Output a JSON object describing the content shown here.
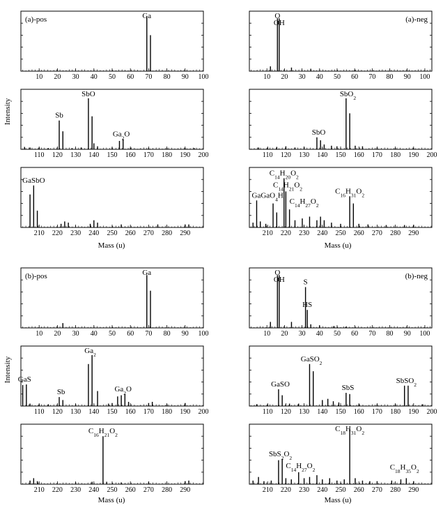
{
  "figure": {
    "intensity_label": "Intensity",
    "mass_label": "Mass (u)"
  },
  "chart_data": [
    {
      "id": "a-pos-1",
      "type": "bar",
      "panel_label": "(a)-pos",
      "xlim": [
        0,
        100
      ],
      "xticks": [
        10,
        20,
        30,
        40,
        50,
        60,
        70,
        80,
        90,
        100
      ],
      "ylim": [
        0,
        1
      ],
      "peaks": [
        [
          69,
          0.9
        ],
        [
          71,
          0.6
        ]
      ],
      "labels": [
        {
          "text": "Ga",
          "x": 69,
          "y": 0.9
        }
      ]
    },
    {
      "id": "a-neg-1",
      "type": "bar",
      "panel_label": "(a)-neg",
      "xlim": [
        0,
        104
      ],
      "xticks": [
        10,
        20,
        30,
        40,
        50,
        60,
        70,
        80,
        90,
        100
      ],
      "ylim": [
        0,
        1
      ],
      "peaks": [
        [
          12,
          0.08
        ],
        [
          16,
          0.88
        ],
        [
          17,
          0.88
        ],
        [
          24,
          0.06
        ],
        [
          35,
          0.04
        ],
        [
          60,
          0.02
        ]
      ],
      "labels": [
        {
          "text": "O",
          "x": 16,
          "y": 0.88
        },
        {
          "text": "OH",
          "x": 17,
          "y": 0.72
        }
      ]
    },
    {
      "id": "a-pos-2",
      "type": "bar",
      "xlim": [
        100,
        200
      ],
      "xticks": [
        110,
        120,
        130,
        140,
        150,
        160,
        170,
        180,
        190,
        200
      ],
      "ylim": [
        0,
        1
      ],
      "peaks": [
        [
          102,
          0.04
        ],
        [
          105,
          0.03
        ],
        [
          110,
          0.03
        ],
        [
          115,
          0.02
        ],
        [
          121,
          0.48
        ],
        [
          123,
          0.3
        ],
        [
          128,
          0.02
        ],
        [
          133,
          0.03
        ],
        [
          137,
          0.85
        ],
        [
          139,
          0.55
        ],
        [
          140,
          0.1
        ],
        [
          142,
          0.05
        ],
        [
          150,
          0.03
        ],
        [
          154,
          0.14
        ],
        [
          156,
          0.17
        ],
        [
          160,
          0.02
        ],
        [
          170,
          0.02
        ],
        [
          180,
          0.02
        ],
        [
          190,
          0.02
        ],
        [
          195,
          0.02
        ]
      ],
      "labels": [
        {
          "text": "Sb",
          "x": 121,
          "y": 0.48
        },
        {
          "text": "SbO",
          "x": 137,
          "y": 0.85
        },
        {
          "text": "Ga",
          "sub": "2",
          "tail": "O",
          "x": 155,
          "y": 0.17
        }
      ]
    },
    {
      "id": "a-neg-2",
      "type": "bar",
      "xlim": [
        100,
        200
      ],
      "xticks": [
        110,
        120,
        130,
        140,
        150,
        160,
        170,
        180,
        190,
        200
      ],
      "ylim": [
        0,
        1
      ],
      "peaks": [
        [
          105,
          0.03
        ],
        [
          110,
          0.03
        ],
        [
          115,
          0.04
        ],
        [
          120,
          0.05
        ],
        [
          125,
          0.03
        ],
        [
          130,
          0.04
        ],
        [
          137,
          0.2
        ],
        [
          139,
          0.15
        ],
        [
          141,
          0.08
        ],
        [
          145,
          0.06
        ],
        [
          148,
          0.05
        ],
        [
          153,
          0.85
        ],
        [
          155,
          0.6
        ],
        [
          158,
          0.06
        ],
        [
          162,
          0.05
        ],
        [
          170,
          0.03
        ],
        [
          180,
          0.02
        ],
        [
          190,
          0.02
        ]
      ],
      "labels": [
        {
          "text": "SbO",
          "x": 138,
          "y": 0.2
        },
        {
          "text": "SbO",
          "sub": "2",
          "x": 154,
          "y": 0.85
        }
      ]
    },
    {
      "id": "a-pos-3",
      "type": "bar",
      "xlim": [
        200,
        300
      ],
      "xticks": [
        210,
        220,
        230,
        240,
        250,
        260,
        270,
        280,
        290
      ],
      "ylim": [
        0,
        1
      ],
      "peaks": [
        [
          205,
          0.55
        ],
        [
          207,
          0.7
        ],
        [
          209,
          0.28
        ],
        [
          222,
          0.06
        ],
        [
          224,
          0.1
        ],
        [
          226,
          0.08
        ],
        [
          238,
          0.06
        ],
        [
          240,
          0.12
        ],
        [
          242,
          0.08
        ],
        [
          255,
          0.05
        ],
        [
          275,
          0.05
        ],
        [
          290,
          0.05
        ],
        [
          292,
          0.05
        ]
      ],
      "labels": [
        {
          "text": "GaSbO",
          "x": 207,
          "y": 0.7
        }
      ]
    },
    {
      "id": "a-neg-3",
      "type": "bar",
      "xlim": [
        200,
        300
      ],
      "xticks": [
        210,
        220,
        230,
        240,
        250,
        260,
        270,
        280,
        290
      ],
      "ylim": [
        0,
        1
      ],
      "peaks": [
        [
          202,
          0.08
        ],
        [
          204,
          0.45
        ],
        [
          206,
          0.1
        ],
        [
          209,
          0.06
        ],
        [
          213,
          0.4
        ],
        [
          215,
          0.25
        ],
        [
          219,
          0.82
        ],
        [
          220,
          0.6
        ],
        [
          222,
          0.3
        ],
        [
          225,
          0.12
        ],
        [
          229,
          0.15
        ],
        [
          233,
          0.18
        ],
        [
          237,
          0.12
        ],
        [
          239,
          0.18
        ],
        [
          241,
          0.12
        ],
        [
          245,
          0.08
        ],
        [
          250,
          0.06
        ],
        [
          255,
          0.52
        ],
        [
          257,
          0.4
        ],
        [
          260,
          0.06
        ],
        [
          265,
          0.05
        ],
        [
          275,
          0.04
        ],
        [
          285,
          0.04
        ],
        [
          290,
          0.04
        ]
      ],
      "labels": [
        {
          "text": "GaGaO",
          "sub": "4",
          "tail": "H",
          "x": 210,
          "y": 0.45
        },
        {
          "text": "C",
          "sub": "14",
          "tail": "H",
          "sub2": "20",
          "tail2": "O",
          "sub3": "2",
          "x": 219,
          "y": 0.82
        },
        {
          "text": "C",
          "sub": "14",
          "tail": "H",
          "sub2": "21",
          "tail2": "O",
          "sub3": "2",
          "x": 221,
          "y": 0.62
        },
        {
          "text": "C",
          "sub": "14",
          "tail": "H",
          "sub2": "27",
          "tail2": "O",
          "sub3": "2",
          "x": 230,
          "y": 0.35
        },
        {
          "text": "C",
          "sub": "16",
          "tail": "H",
          "sub2": "31",
          "tail2": "O",
          "sub3": "2",
          "x": 255,
          "y": 0.52
        }
      ]
    },
    {
      "id": "b-pos-1",
      "type": "bar",
      "panel_label": "(b)-pos",
      "xlim": [
        0,
        100
      ],
      "xticks": [
        10,
        20,
        30,
        40,
        50,
        60,
        70,
        80,
        90,
        100
      ],
      "ylim": [
        0,
        1
      ],
      "peaks": [
        [
          23,
          0.08
        ],
        [
          69,
          0.88
        ],
        [
          71,
          0.62
        ]
      ],
      "labels": [
        {
          "text": "Ga",
          "x": 69,
          "y": 0.88
        }
      ]
    },
    {
      "id": "b-neg-1",
      "type": "bar",
      "panel_label": "(b)-neg",
      "xlim": [
        0,
        104
      ],
      "xticks": [
        10,
        20,
        30,
        40,
        50,
        60,
        70,
        80,
        90,
        100
      ],
      "ylim": [
        0,
        1
      ],
      "peaks": [
        [
          12,
          0.1
        ],
        [
          16,
          0.88
        ],
        [
          17,
          0.88
        ],
        [
          24,
          0.1
        ],
        [
          32,
          0.68
        ],
        [
          33,
          0.3
        ],
        [
          35,
          0.06
        ],
        [
          40,
          0.04
        ],
        [
          48,
          0.03
        ],
        [
          55,
          0.02
        ]
      ],
      "labels": [
        {
          "text": "O",
          "x": 16,
          "y": 0.88
        },
        {
          "text": "OH",
          "x": 17,
          "y": 0.72
        },
        {
          "text": "S",
          "x": 32,
          "y": 0.68
        },
        {
          "text": "HS",
          "x": 33,
          "y": 0.3
        }
      ]
    },
    {
      "id": "b-pos-2",
      "type": "bar",
      "xlim": [
        100,
        200
      ],
      "xticks": [
        110,
        120,
        130,
        140,
        150,
        160,
        170,
        180,
        190,
        200
      ],
      "ylim": [
        0,
        1
      ],
      "peaks": [
        [
          101,
          0.35
        ],
        [
          103,
          0.36
        ],
        [
          105,
          0.04
        ],
        [
          110,
          0.03
        ],
        [
          115,
          0.03
        ],
        [
          121,
          0.15
        ],
        [
          123,
          0.1
        ],
        [
          130,
          0.03
        ],
        [
          137,
          0.7
        ],
        [
          139,
          0.85
        ],
        [
          142,
          0.25
        ],
        [
          148,
          0.04
        ],
        [
          150,
          0.05
        ],
        [
          153,
          0.16
        ],
        [
          155,
          0.18
        ],
        [
          157,
          0.2
        ],
        [
          159,
          0.07
        ],
        [
          170,
          0.05
        ],
        [
          172,
          0.07
        ],
        [
          180,
          0.03
        ],
        [
          190,
          0.05
        ]
      ],
      "labels": [
        {
          "text": "GaS",
          "x": 102,
          "y": 0.36
        },
        {
          "text": "Sb",
          "x": 122,
          "y": 0.15
        },
        {
          "text": "Ga",
          "sub": "2",
          "x": 138,
          "y": 0.85
        },
        {
          "text": "Ga",
          "sub": "2",
          "tail": "O",
          "x": 156,
          "y": 0.2
        }
      ]
    },
    {
      "id": "b-neg-2",
      "type": "bar",
      "xlim": [
        100,
        200
      ],
      "xticks": [
        110,
        120,
        130,
        140,
        150,
        160,
        170,
        180,
        190,
        200
      ],
      "ylim": [
        0,
        1
      ],
      "peaks": [
        [
          104,
          0.03
        ],
        [
          110,
          0.03
        ],
        [
          116,
          0.28
        ],
        [
          118,
          0.18
        ],
        [
          122,
          0.04
        ],
        [
          127,
          0.04
        ],
        [
          133,
          0.7
        ],
        [
          135,
          0.58
        ],
        [
          140,
          0.1
        ],
        [
          143,
          0.12
        ],
        [
          146,
          0.08
        ],
        [
          149,
          0.06
        ],
        [
          153,
          0.22
        ],
        [
          155,
          0.2
        ],
        [
          160,
          0.03
        ],
        [
          170,
          0.03
        ],
        [
          180,
          0.03
        ],
        [
          185,
          0.34
        ],
        [
          187,
          0.34
        ],
        [
          195,
          0.03
        ]
      ],
      "labels": [
        {
          "text": "GaSO",
          "x": 117,
          "y": 0.28
        },
        {
          "text": "GaSO",
          "sub": "2",
          "x": 134,
          "y": 0.7
        },
        {
          "text": "SbS",
          "x": 154,
          "y": 0.22
        },
        {
          "text": "SbSO",
          "sub": "2",
          "x": 186,
          "y": 0.34
        }
      ]
    },
    {
      "id": "b-pos-3",
      "type": "bar",
      "xlim": [
        200,
        300
      ],
      "xticks": [
        210,
        220,
        230,
        240,
        250,
        260,
        270,
        280,
        290
      ],
      "ylim": [
        0,
        1
      ],
      "peaks": [
        [
          205,
          0.06
        ],
        [
          207,
          0.1
        ],
        [
          209,
          0.05
        ],
        [
          230,
          0.03
        ],
        [
          239,
          0.04
        ],
        [
          245,
          0.8
        ],
        [
          247,
          0.04
        ],
        [
          255,
          0.03
        ],
        [
          270,
          0.04
        ],
        [
          290,
          0.05
        ],
        [
          292,
          0.06
        ]
      ],
      "labels": [
        {
          "text": "C",
          "sub": "16",
          "tail": "H",
          "sub2": "21",
          "tail2": "O",
          "sub3": "2",
          "x": 245,
          "y": 0.8
        }
      ]
    },
    {
      "id": "b-neg-3",
      "type": "bar",
      "xlim": [
        200,
        300
      ],
      "xticks": [
        210,
        220,
        230,
        240,
        250,
        260,
        270,
        280,
        290
      ],
      "ylim": [
        0,
        1
      ],
      "peaks": [
        [
          202,
          0.06
        ],
        [
          205,
          0.12
        ],
        [
          208,
          0.05
        ],
        [
          212,
          0.06
        ],
        [
          216,
          0.4
        ],
        [
          218,
          0.42
        ],
        [
          220,
          0.1
        ],
        [
          223,
          0.08
        ],
        [
          227,
          0.2
        ],
        [
          230,
          0.1
        ],
        [
          233,
          0.12
        ],
        [
          237,
          0.15
        ],
        [
          240,
          0.08
        ],
        [
          244,
          0.1
        ],
        [
          248,
          0.06
        ],
        [
          252,
          0.08
        ],
        [
          255,
          0.92
        ],
        [
          258,
          0.1
        ],
        [
          262,
          0.06
        ],
        [
          266,
          0.05
        ],
        [
          270,
          0.05
        ],
        [
          278,
          0.06
        ],
        [
          283,
          0.08
        ],
        [
          286,
          0.1
        ],
        [
          290,
          0.05
        ]
      ],
      "labels": [
        {
          "text": "SbS",
          "sub": "2",
          "tail": "O",
          "sub2": "2",
          "x": 217,
          "y": 0.42
        },
        {
          "text": "C",
          "sub": "14",
          "tail": "H",
          "sub2": "27",
          "tail2": "O",
          "sub3": "2",
          "x": 228,
          "y": 0.22
        },
        {
          "text": "C",
          "sub": "18",
          "tail": "H",
          "sub2": "31",
          "tail2": "O",
          "sub3": "2",
          "x": 255,
          "y": 0.92
        },
        {
          "text": "C",
          "sub": "18",
          "tail": "H",
          "sub2": "35",
          "tail2": "O",
          "sub3": "2",
          "x": 285,
          "y": 0.2
        }
      ]
    }
  ]
}
